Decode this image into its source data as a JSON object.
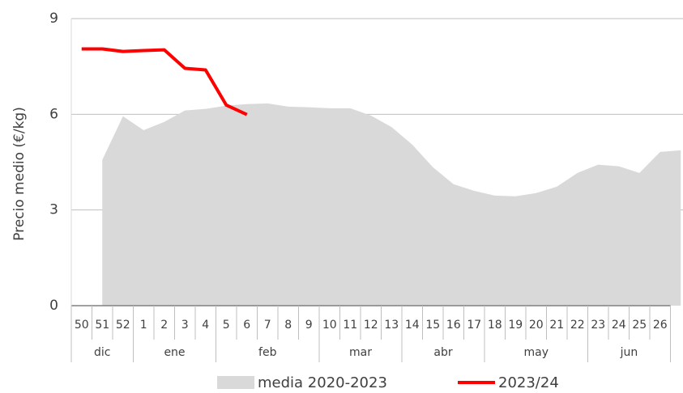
{
  "chart_data": {
    "type": "line",
    "ylabel": "Precio medio (€/kg)",
    "categories": [
      "50",
      "51",
      "52",
      "1",
      "2",
      "3",
      "4",
      "5",
      "6",
      "7",
      "8",
      "9",
      "10",
      "11",
      "12",
      "13",
      "14",
      "15",
      "16",
      "17",
      "18",
      "19",
      "20",
      "21",
      "22",
      "23",
      "24",
      "25",
      "26",
      null
    ],
    "groups": [
      {
        "name": "dic",
        "count": 3
      },
      {
        "name": "ene",
        "count": 4
      },
      {
        "name": "feb",
        "count": 5
      },
      {
        "name": "mar",
        "count": 4
      },
      {
        "name": "abr",
        "count": 4
      },
      {
        "name": "may",
        "count": 5
      },
      {
        "name": "jun",
        "count": 4
      }
    ],
    "series": [
      {
        "name": "media 2020-2023",
        "kind": "area",
        "color": "#d9d9d9",
        "values": [
          null,
          4.57,
          5.94,
          5.5,
          5.76,
          6.12,
          6.17,
          6.27,
          6.32,
          6.34,
          6.24,
          6.22,
          6.19,
          6.19,
          5.96,
          5.6,
          5.05,
          4.34,
          3.81,
          3.6,
          3.45,
          3.43,
          3.53,
          3.73,
          4.16,
          4.42,
          4.37,
          4.16,
          4.82,
          4.87
        ]
      },
      {
        "name": "2023/24",
        "kind": "line",
        "color": "#ff0000",
        "values": [
          8.05,
          8.05,
          7.97,
          8.0,
          8.02,
          7.44,
          7.39,
          6.29,
          5.99,
          null,
          null,
          null,
          null,
          null,
          null,
          null,
          null,
          null,
          null,
          null,
          null,
          null,
          null,
          null,
          null,
          null,
          null,
          null,
          null,
          null
        ]
      }
    ],
    "ylim": [
      0,
      9
    ],
    "yticks": [
      0,
      3,
      6,
      9
    ],
    "grid": true
  }
}
